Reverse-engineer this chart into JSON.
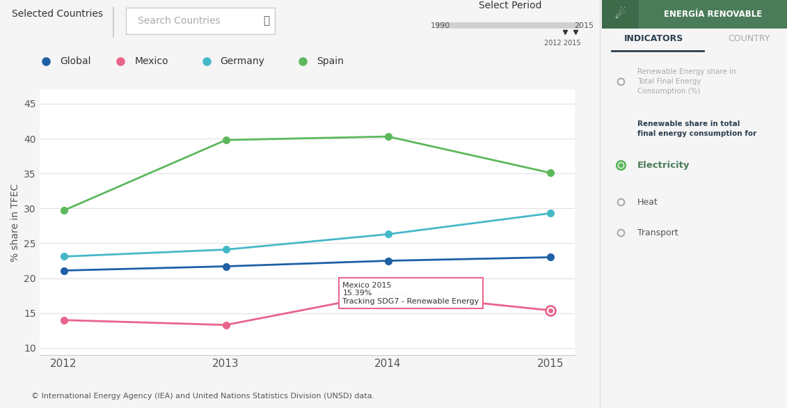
{
  "years": [
    2012,
    2013,
    2014,
    2015
  ],
  "global": [
    21.1,
    21.7,
    22.5,
    23.0
  ],
  "mexico": [
    14.0,
    13.3,
    17.8,
    15.39
  ],
  "germany": [
    23.1,
    24.1,
    26.3,
    29.3
  ],
  "spain": [
    29.7,
    39.8,
    40.3,
    35.1
  ],
  "colors": {
    "global": "#1f5fa6",
    "mexico": "#e8648a",
    "germany": "#45b8c8",
    "spain": "#5cb85c"
  },
  "ylabel": "% share in TFEC",
  "ylim": [
    9,
    47
  ],
  "yticks": [
    10,
    15,
    20,
    25,
    30,
    35,
    40,
    45
  ],
  "bg_chart": "#ffffff",
  "bg_main": "#f5f5f5",
  "grid_color": "#e0e0e0",
  "tooltip_line1": "Mexico 2015",
  "tooltip_line2": "15.39%",
  "tooltip_line3": "Tracking SDG7 - Renewable Energy",
  "legend_items": [
    "Global",
    "Mexico",
    "Germany",
    "Spain"
  ],
  "selected_countries_label": "Selected Countries",
  "search_label": "Search Countries",
  "select_period_label": "Select Period",
  "period_start": "1990",
  "period_end": "2015",
  "period_selected": "2012 2015",
  "footer": "© International Energy Agency (IEA) and United Nations Statistics Division (UNSD) data.",
  "right_panel_title": "ENERGÍA RENOVABLE",
  "right_panel_tab1": "INDICATORS",
  "right_panel_tab2": "COUNTRY",
  "right_panel_text1": "Renewable Energy share in\nTotal Final Energy\nConsumption (%)",
  "right_panel_text2": "Renewable share in total\nfinal energy consumption for",
  "right_panel_electricity": "Electricity",
  "right_panel_heat": "Heat",
  "right_panel_transport": "Transport",
  "panel_green_dark": "#4a7c59",
  "panel_green_darker": "#3d6b4a",
  "panel_green_text": "#5a8a6a"
}
